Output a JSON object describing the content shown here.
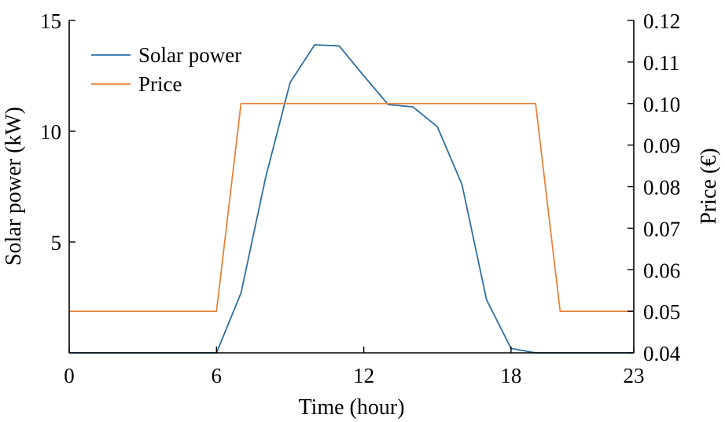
{
  "chart_data": {
    "type": "line",
    "xlabel": "Time (hour)",
    "ylabel_left": "Solar power (kW)",
    "ylabel_right": "Price (€)",
    "x_ticks": [
      "0",
      "6",
      "12",
      "18",
      "23"
    ],
    "y_left_ticks": [
      "5",
      "10",
      "15"
    ],
    "y_right_ticks": [
      "0.04",
      "0.05",
      "0.06",
      "0.07",
      "0.08",
      "0.09",
      "0.10",
      "0.11",
      "0.12"
    ],
    "xlim": [
      0,
      23
    ],
    "ylim_left": [
      0,
      15
    ],
    "ylim_right": [
      0.04,
      0.12
    ],
    "legend_position": "top-left",
    "x": [
      0,
      1,
      2,
      3,
      4,
      5,
      6,
      7,
      8,
      9,
      10,
      11,
      12,
      13,
      14,
      15,
      16,
      17,
      18,
      19,
      20,
      21,
      22,
      23
    ],
    "series": [
      {
        "name": "Solar power",
        "axis": "left",
        "color": "#2f6f9f",
        "values": [
          0,
          0,
          0,
          0,
          0,
          0,
          0,
          2.7,
          7.9,
          12.2,
          13.9,
          13.85,
          12.5,
          11.2,
          11.1,
          10.2,
          7.6,
          2.4,
          0.2,
          0,
          0,
          0,
          0,
          0
        ]
      },
      {
        "name": "Price",
        "axis": "right",
        "color": "#e8833a",
        "values": [
          0.05,
          0.05,
          0.05,
          0.05,
          0.05,
          0.05,
          0.05,
          0.1,
          0.1,
          0.1,
          0.1,
          0.1,
          0.1,
          0.1,
          0.1,
          0.1,
          0.1,
          0.1,
          0.1,
          0.1,
          0.05,
          0.05,
          0.05,
          0.05
        ]
      }
    ]
  }
}
